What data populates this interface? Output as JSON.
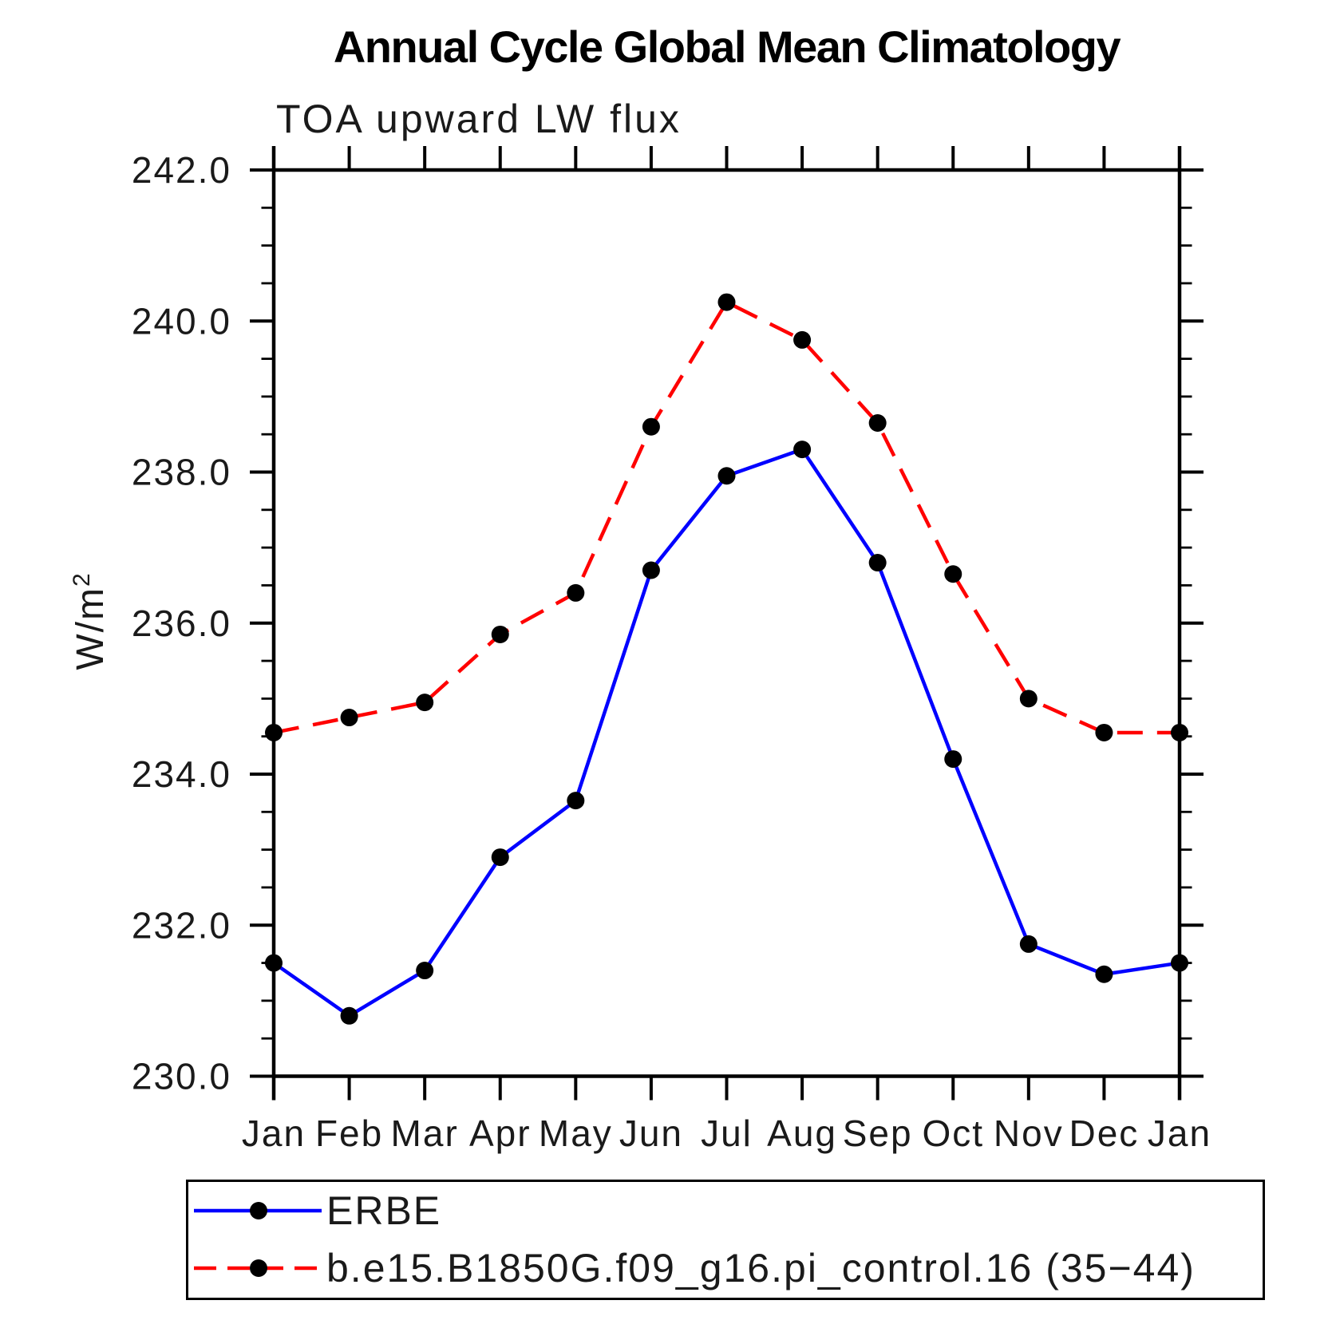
{
  "title": "Annual Cycle Global Mean Climatology",
  "subtitle": "TOA upward LW flux",
  "y_axis": {
    "label_base": "W/m",
    "label_exponent": "2"
  },
  "chart_data": {
    "type": "line",
    "title": "Annual Cycle Global Mean Climatology",
    "subtitle": "TOA upward LW flux",
    "ylabel": "W/m^2",
    "x_tick_labels": [
      "Jan",
      "Feb",
      "Mar",
      "Apr",
      "May",
      "Jun",
      "Jul",
      "Aug",
      "Sep",
      "Oct",
      "Nov",
      "Dec",
      "Jan"
    ],
    "y_tick_labels": [
      "230.0",
      "232.0",
      "234.0",
      "236.0",
      "238.0",
      "240.0",
      "242.0"
    ],
    "ylim": [
      230.0,
      242.0
    ],
    "y_major_tick_step": 2.0,
    "y_minor_tick_step": 0.5,
    "grid": false,
    "legend_position": "below",
    "frame_color": "#000000",
    "marker": {
      "shape": "circle",
      "color": "#000000",
      "radius_px": 11
    },
    "series": [
      {
        "name": "ERBE",
        "color": "#0000ff",
        "line_style": "solid",
        "values": [
          231.5,
          230.8,
          231.4,
          232.9,
          233.65,
          236.7,
          237.95,
          238.3,
          236.8,
          234.2,
          231.75,
          231.35,
          231.5
        ]
      },
      {
        "name": "b.e15.B1850G.f09_g16.pi_control.16 (35−44)",
        "color": "#ff0000",
        "line_style": "dashed",
        "values": [
          234.55,
          234.75,
          234.95,
          235.85,
          236.4,
          238.6,
          240.25,
          239.75,
          238.65,
          236.65,
          235.0,
          234.55,
          234.55
        ]
      }
    ]
  }
}
